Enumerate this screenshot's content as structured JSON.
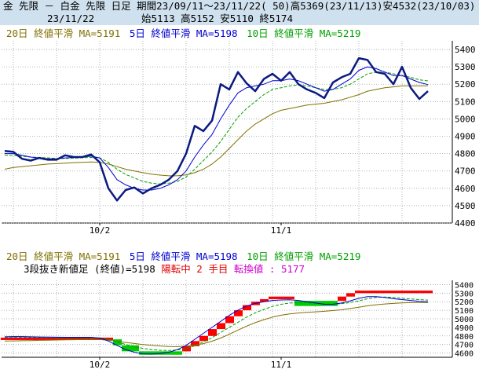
{
  "header": {
    "title_line": "金 先限 － 白金 先限 日足 期間23/09/11～23/11/22( 50)高5369(23/11/13)安4532(23/10/03)",
    "date": "23/11/22",
    "ohlc": "始5113 高5152 安5110 終5174"
  },
  "colors": {
    "candle_line": "#0a1a80",
    "ma5": "#0000d0",
    "ma10": "#00a000",
    "ma20": "#807000",
    "brick_up": "#ff0000",
    "brick_down": "#00cc00",
    "header_bg": "#cfe0ee"
  },
  "upper_legend": {
    "ma20": "20日 終値平滑 MA=5191",
    "ma5": "5日 終値平滑 MA=5198",
    "ma10": "10日 終値平滑 MA=5219"
  },
  "lower_legend": {
    "ma20": "20日 終値平滑 MA=5191",
    "ma5": "5日 終値平滑 MA=5198",
    "ma10": "10日 終値平滑 MA=5219",
    "line2_prefix": "3段抜き新値足 (終値)=5198 ",
    "line2_state": "陽転中  2 手目",
    "line2_pivot": " 転換値 : 5177"
  },
  "chart_data": [
    {
      "type": "line",
      "title": "",
      "x_labels": [
        {
          "index": 11,
          "label": "10/2"
        },
        {
          "index": 32,
          "label": "11/1"
        }
      ],
      "ylim": [
        4400,
        5450
      ],
      "yticks": [
        4400,
        4500,
        4600,
        4700,
        4800,
        4900,
        5000,
        5100,
        5200,
        5300,
        5400
      ],
      "grid": true,
      "series": [
        {
          "name": "終値",
          "values": [
            4815,
            4810,
            4770,
            4760,
            4775,
            4765,
            4765,
            4790,
            4780,
            4780,
            4795,
            4750,
            4600,
            4530,
            4590,
            4605,
            4570,
            4600,
            4620,
            4650,
            4700,
            4800,
            4960,
            4930,
            4990,
            5200,
            5170,
            5270,
            5205,
            5160,
            5230,
            5260,
            5220,
            5270,
            5200,
            5170,
            5150,
            5120,
            5210,
            5240,
            5260,
            5350,
            5340,
            5270,
            5260,
            5200,
            5300,
            5180,
            5115,
            5160
          ]
        },
        {
          "name": "5日 終値平滑 MA=5198",
          "values": [
            4800,
            4800,
            4790,
            4780,
            4775,
            4770,
            4770,
            4775,
            4778,
            4780,
            4785,
            4775,
            4720,
            4650,
            4620,
            4600,
            4590,
            4590,
            4600,
            4620,
            4650,
            4700,
            4780,
            4850,
            4910,
            5000,
            5080,
            5150,
            5180,
            5190,
            5200,
            5220,
            5220,
            5230,
            5220,
            5200,
            5180,
            5160,
            5170,
            5200,
            5230,
            5280,
            5300,
            5290,
            5270,
            5250,
            5250,
            5230,
            5210,
            5198
          ]
        },
        {
          "name": "10日 終値平滑 MA=5219",
          "values": [
            4790,
            4790,
            4785,
            4780,
            4778,
            4775,
            4772,
            4772,
            4774,
            4776,
            4778,
            4776,
            4750,
            4710,
            4680,
            4660,
            4640,
            4630,
            4625,
            4630,
            4640,
            4665,
            4710,
            4760,
            4810,
            4870,
            4940,
            5010,
            5060,
            5100,
            5140,
            5170,
            5180,
            5190,
            5195,
            5190,
            5180,
            5170,
            5170,
            5180,
            5200,
            5230,
            5260,
            5270,
            5270,
            5260,
            5250,
            5240,
            5225,
            5219
          ]
        },
        {
          "name": "20日 終値平滑 MA=5191",
          "values": [
            4710,
            4720,
            4725,
            4730,
            4735,
            4740,
            4742,
            4745,
            4748,
            4750,
            4752,
            4750,
            4740,
            4725,
            4710,
            4700,
            4690,
            4682,
            4676,
            4672,
            4672,
            4678,
            4690,
            4710,
            4740,
            4780,
            4830,
            4880,
            4930,
            4970,
            5000,
            5030,
            5050,
            5060,
            5070,
            5080,
            5085,
            5090,
            5100,
            5110,
            5125,
            5140,
            5160,
            5170,
            5180,
            5185,
            5190,
            5190,
            5190,
            5191
          ]
        }
      ]
    },
    {
      "type": "bar",
      "title": "3段抜き新値足 (終値)",
      "ylim": [
        4550,
        5450
      ],
      "yticks": [
        4600,
        4700,
        4800,
        4900,
        5000,
        5100,
        5200,
        5300,
        5400
      ],
      "grid": true,
      "bricks": [
        {
          "start": 0,
          "end": 13,
          "lo": 4760,
          "hi": 4780,
          "dir": "up"
        },
        {
          "start": 13,
          "end": 14,
          "lo": 4690,
          "hi": 4760,
          "dir": "down"
        },
        {
          "start": 14,
          "end": 16,
          "lo": 4620,
          "hi": 4690,
          "dir": "down"
        },
        {
          "start": 16,
          "end": 21,
          "lo": 4580,
          "hi": 4620,
          "dir": "down"
        },
        {
          "start": 21,
          "end": 22,
          "lo": 4620,
          "hi": 4680,
          "dir": "up"
        },
        {
          "start": 22,
          "end": 23,
          "lo": 4680,
          "hi": 4740,
          "dir": "up"
        },
        {
          "start": 23,
          "end": 24,
          "lo": 4740,
          "hi": 4800,
          "dir": "up"
        },
        {
          "start": 24,
          "end": 25,
          "lo": 4800,
          "hi": 4880,
          "dir": "up"
        },
        {
          "start": 25,
          "end": 26,
          "lo": 4880,
          "hi": 4950,
          "dir": "up"
        },
        {
          "start": 26,
          "end": 27,
          "lo": 4950,
          "hi": 5030,
          "dir": "up"
        },
        {
          "start": 27,
          "end": 28,
          "lo": 5030,
          "hi": 5100,
          "dir": "up"
        },
        {
          "start": 28,
          "end": 29,
          "lo": 5100,
          "hi": 5160,
          "dir": "up"
        },
        {
          "start": 29,
          "end": 30,
          "lo": 5160,
          "hi": 5200,
          "dir": "up"
        },
        {
          "start": 30,
          "end": 31,
          "lo": 5200,
          "hi": 5230,
          "dir": "up"
        },
        {
          "start": 31,
          "end": 34,
          "lo": 5230,
          "hi": 5260,
          "dir": "up"
        },
        {
          "start": 34,
          "end": 39,
          "lo": 5150,
          "hi": 5210,
          "dir": "down"
        },
        {
          "start": 39,
          "end": 40,
          "lo": 5210,
          "hi": 5260,
          "dir": "up"
        },
        {
          "start": 40,
          "end": 41,
          "lo": 5260,
          "hi": 5300,
          "dir": "up"
        },
        {
          "start": 41,
          "end": 50,
          "lo": 5300,
          "hi": 5330,
          "dir": "up"
        }
      ],
      "series": [
        {
          "name": "5日 終値平滑 MA=5198",
          "values": [
            4790,
            4792,
            4792,
            4790,
            4788,
            4786,
            4785,
            4784,
            4784,
            4784,
            4784,
            4775,
            4740,
            4690,
            4640,
            4610,
            4590,
            4588,
            4595,
            4610,
            4640,
            4690,
            4760,
            4830,
            4900,
            4970,
            5040,
            5100,
            5150,
            5180,
            5200,
            5215,
            5220,
            5222,
            5215,
            5200,
            5185,
            5170,
            5170,
            5185,
            5210,
            5240,
            5260,
            5260,
            5250,
            5235,
            5225,
            5215,
            5205,
            5198
          ]
        },
        {
          "name": "10日 終値平滑 MA=5219",
          "values": [
            4780,
            4782,
            4782,
            4781,
            4780,
            4779,
            4778,
            4778,
            4778,
            4778,
            4778,
            4776,
            4760,
            4730,
            4700,
            4675,
            4655,
            4640,
            4632,
            4630,
            4635,
            4650,
            4685,
            4730,
            4780,
            4840,
            4900,
            4960,
            5020,
            5070,
            5110,
            5145,
            5170,
            5185,
            5190,
            5188,
            5182,
            5175,
            5172,
            5176,
            5190,
            5210,
            5235,
            5250,
            5255,
            5250,
            5240,
            5232,
            5225,
            5219
          ]
        },
        {
          "name": "20日 終値平滑 MA=5191",
          "values": [
            4740,
            4742,
            4744,
            4746,
            4748,
            4750,
            4752,
            4754,
            4756,
            4758,
            4760,
            4758,
            4750,
            4738,
            4724,
            4712,
            4700,
            4690,
            4682,
            4676,
            4675,
            4680,
            4692,
            4710,
            4738,
            4775,
            4820,
            4868,
            4915,
            4955,
            4990,
            5020,
            5042,
            5058,
            5068,
            5076,
            5082,
            5088,
            5096,
            5106,
            5120,
            5135,
            5152,
            5164,
            5174,
            5180,
            5186,
            5189,
            5190,
            5191
          ]
        }
      ]
    }
  ]
}
